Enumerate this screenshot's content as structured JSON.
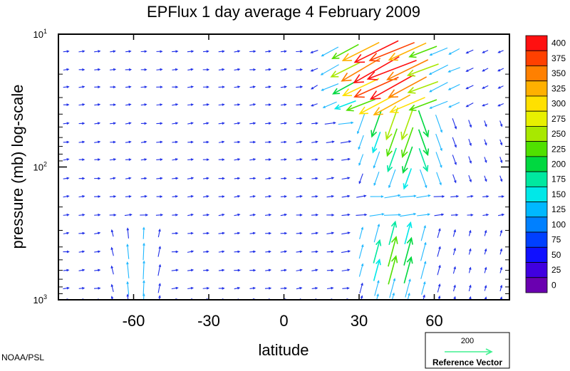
{
  "chart_data": {
    "type": "vector-field",
    "title": "EPFlux  1 day average  4 February 2009",
    "xlabel": "latitude",
    "ylabel": "pressure (mb)  log-scale",
    "x_ticks": [
      {
        "value": -60,
        "label": "-60"
      },
      {
        "value": -30,
        "label": "-30"
      },
      {
        "value": 0,
        "label": "0"
      },
      {
        "value": 30,
        "label": "30"
      },
      {
        "value": 60,
        "label": "60"
      }
    ],
    "xlim": [
      -90,
      90
    ],
    "y_scale": "log",
    "y_inverted": true,
    "ylim": [
      1000,
      10
    ],
    "y_ticks": [
      {
        "value": 10,
        "base": "10",
        "exp": "1"
      },
      {
        "value": 100,
        "base": "10",
        "exp": "2"
      },
      {
        "value": 1000,
        "base": "10",
        "exp": "3"
      }
    ],
    "colorbar": {
      "labels": [
        "400",
        "375",
        "350",
        "325",
        "300",
        "275",
        "250",
        "225",
        "200",
        "175",
        "150",
        "125",
        "100",
        "75",
        "50",
        "25",
        "0"
      ],
      "colors": [
        "#ff1010",
        "#ff4000",
        "#ff8000",
        "#ffb000",
        "#ffe000",
        "#e8f000",
        "#a8e800",
        "#50e000",
        "#00d840",
        "#00e8a0",
        "#00e8e8",
        "#00b8ff",
        "#0080ff",
        "#0040ff",
        "#1010ff",
        "#4000e0",
        "#6a00b0"
      ]
    },
    "reference_vector": {
      "value": "200",
      "label": "Reference Vector",
      "color": "#40f090"
    },
    "grid": false
  },
  "credit": "NOAA/PSL"
}
